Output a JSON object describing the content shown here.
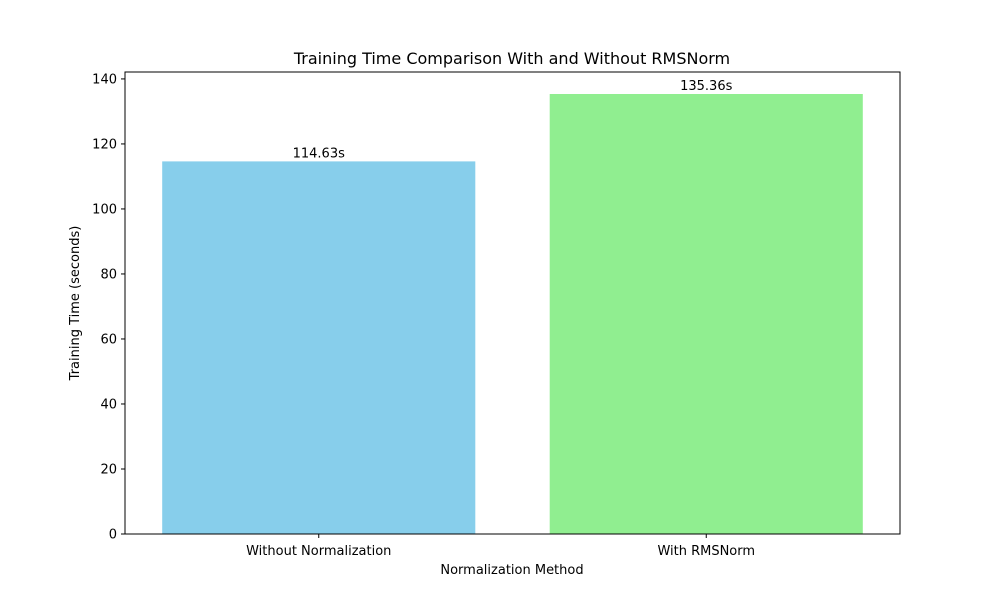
{
  "chart_data": {
    "type": "bar",
    "title": "Training Time Comparison With and Without RMSNorm",
    "xlabel": "Normalization Method",
    "ylabel": "Training Time (seconds)",
    "categories": [
      "Without Normalization",
      "With RMSNorm"
    ],
    "values": [
      114.63,
      135.36
    ],
    "data_labels": [
      "114.63s",
      "135.36s"
    ],
    "colors": [
      "#87ceeb",
      "#90ee90"
    ],
    "ylim": [
      0,
      142.13
    ],
    "yticks": [
      0,
      20,
      40,
      60,
      80,
      100,
      120,
      140
    ],
    "grid": false,
    "legend": "none"
  }
}
